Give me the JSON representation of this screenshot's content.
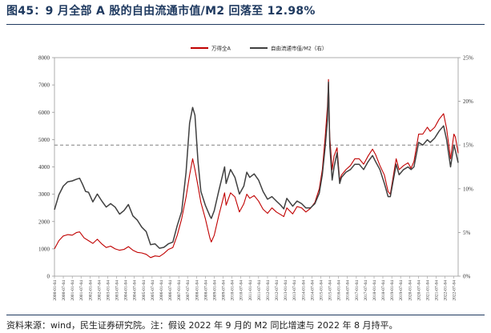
{
  "page": {
    "title": "图45：9 月全部 A 股的自由流通市值/M2 回落至 12.98%",
    "source": "资料来源：wind，民生证券研究院。注：假设 2022 年 9 月的 M2 同比增速与 2022 年 8 月持平。"
  },
  "colors": {
    "series_red": "#c00000",
    "series_gray": "#404040",
    "reference": "#808080",
    "title": "#1f3a60"
  },
  "chart_data": {
    "type": "line",
    "x_unit": "date",
    "x_range": [
      "2000-01-04",
      "2022-09-30"
    ],
    "x_tick_labels": [
      "2000-01-04",
      "2000-07-04",
      "2001-01-04",
      "2001-07-04",
      "2002-01-04",
      "2002-07-04",
      "2003-01-04",
      "2003-07-04",
      "2004-01-04",
      "2004-07-04",
      "2005-01-04",
      "2005-07-04",
      "2006-01-04",
      "2006-07-04",
      "2007-01-04",
      "2007-07-04",
      "2008-01-04",
      "2008-07-04",
      "2009-01-04",
      "2009-07-04",
      "2010-01-04",
      "2010-07-04",
      "2011-01-04",
      "2011-07-04",
      "2012-01-04",
      "2012-07-04",
      "2013-01-04",
      "2013-07-04",
      "2014-01-04",
      "2014-07-04",
      "2015-01-04",
      "2015-07-04",
      "2016-01-04",
      "2016-07-04",
      "2017-01-04",
      "2017-07-04",
      "2018-01-04",
      "2018-07-04",
      "2019-01-04",
      "2019-07-04",
      "2020-01-04",
      "2020-07-04",
      "2021-01-04",
      "2021-07-04",
      "2022-01-04",
      "2022-07-04"
    ],
    "y_left": {
      "range": [
        0,
        8000
      ],
      "ticks": [
        "0",
        "1000",
        "2000",
        "3000",
        "4000",
        "5000",
        "6000",
        "7000",
        "8000"
      ]
    },
    "y_right": {
      "range": [
        0,
        25
      ],
      "ticks": [
        "0%",
        "5%",
        "10%",
        "15%",
        "20%",
        "25%"
      ]
    },
    "reference_line": {
      "axis": "right",
      "value": 15
    },
    "legend": {
      "position": "top-center"
    },
    "series": [
      {
        "name": "万得全A",
        "axis": "left",
        "color": "#c00000",
        "points": [
          [
            "2000-01-04",
            1000
          ],
          [
            "2000-04-04",
            1300
          ],
          [
            "2000-07-04",
            1470
          ],
          [
            "2000-10-04",
            1520
          ],
          [
            "2001-01-04",
            1500
          ],
          [
            "2001-04-04",
            1600
          ],
          [
            "2001-06-04",
            1620
          ],
          [
            "2001-09-04",
            1400
          ],
          [
            "2001-12-04",
            1300
          ],
          [
            "2002-03-04",
            1200
          ],
          [
            "2002-06-04",
            1350
          ],
          [
            "2002-09-04",
            1180
          ],
          [
            "2002-12-04",
            1050
          ],
          [
            "2003-03-04",
            1100
          ],
          [
            "2003-06-04",
            1000
          ],
          [
            "2003-09-04",
            950
          ],
          [
            "2003-12-04",
            980
          ],
          [
            "2004-03-04",
            1080
          ],
          [
            "2004-06-04",
            950
          ],
          [
            "2004-09-04",
            870
          ],
          [
            "2004-12-04",
            850
          ],
          [
            "2005-03-04",
            800
          ],
          [
            "2005-06-04",
            680
          ],
          [
            "2005-09-04",
            740
          ],
          [
            "2005-12-04",
            720
          ],
          [
            "2006-03-04",
            830
          ],
          [
            "2006-06-04",
            980
          ],
          [
            "2006-09-04",
            1050
          ],
          [
            "2006-12-04",
            1500
          ],
          [
            "2007-03-04",
            2100
          ],
          [
            "2007-06-04",
            2900
          ],
          [
            "2007-08-15",
            3700
          ],
          [
            "2007-10-16",
            4300
          ],
          [
            "2007-12-04",
            3900
          ],
          [
            "2008-02-04",
            3300
          ],
          [
            "2008-04-04",
            2700
          ],
          [
            "2008-07-04",
            2100
          ],
          [
            "2008-10-04",
            1400
          ],
          [
            "2008-11-04",
            1250
          ],
          [
            "2009-01-04",
            1500
          ],
          [
            "2009-04-04",
            2200
          ],
          [
            "2009-08-04",
            3050
          ],
          [
            "2009-09-04",
            2600
          ],
          [
            "2009-12-04",
            3050
          ],
          [
            "2010-03-04",
            2900
          ],
          [
            "2010-06-04",
            2350
          ],
          [
            "2010-09-04",
            2650
          ],
          [
            "2010-11-04",
            3000
          ],
          [
            "2011-01-04",
            2850
          ],
          [
            "2011-04-04",
            2950
          ],
          [
            "2011-07-04",
            2750
          ],
          [
            "2011-10-04",
            2450
          ],
          [
            "2012-01-04",
            2300
          ],
          [
            "2012-04-04",
            2500
          ],
          [
            "2012-07-04",
            2350
          ],
          [
            "2012-10-04",
            2250
          ],
          [
            "2012-12-04",
            2180
          ],
          [
            "2013-02-04",
            2500
          ],
          [
            "2013-06-04",
            2280
          ],
          [
            "2013-09-04",
            2550
          ],
          [
            "2013-12-04",
            2500
          ],
          [
            "2014-03-04",
            2350
          ],
          [
            "2014-06-04",
            2480
          ],
          [
            "2014-09-04",
            2700
          ],
          [
            "2014-12-04",
            3200
          ],
          [
            "2015-02-04",
            3900
          ],
          [
            "2015-04-04",
            5100
          ],
          [
            "2015-05-20",
            6200
          ],
          [
            "2015-06-12",
            7200
          ],
          [
            "2015-07-08",
            5100
          ],
          [
            "2015-08-26",
            3900
          ],
          [
            "2015-10-04",
            4400
          ],
          [
            "2015-12-04",
            4700
          ],
          [
            "2016-01-28",
            3500
          ],
          [
            "2016-03-04",
            3700
          ],
          [
            "2016-06-04",
            3900
          ],
          [
            "2016-09-04",
            4050
          ],
          [
            "2016-12-04",
            4300
          ],
          [
            "2017-03-04",
            4300
          ],
          [
            "2017-06-04",
            4100
          ],
          [
            "2017-09-04",
            4400
          ],
          [
            "2017-12-04",
            4650
          ],
          [
            "2018-02-04",
            4450
          ],
          [
            "2018-05-04",
            4050
          ],
          [
            "2018-08-04",
            3700
          ],
          [
            "2018-10-19",
            3100
          ],
          [
            "2018-12-04",
            3000
          ],
          [
            "2019-04-04",
            4300
          ],
          [
            "2019-06-04",
            3900
          ],
          [
            "2019-09-04",
            4050
          ],
          [
            "2019-12-04",
            4150
          ],
          [
            "2020-02-04",
            3950
          ],
          [
            "2020-04-04",
            4200
          ],
          [
            "2020-07-10",
            5200
          ],
          [
            "2020-10-04",
            5200
          ],
          [
            "2021-01-04",
            5450
          ],
          [
            "2021-03-04",
            5300
          ],
          [
            "2021-06-04",
            5450
          ],
          [
            "2021-09-04",
            5750
          ],
          [
            "2021-12-04",
            5950
          ],
          [
            "2022-02-04",
            5400
          ],
          [
            "2022-04-27",
            4300
          ],
          [
            "2022-07-04",
            5200
          ],
          [
            "2022-08-04",
            5100
          ],
          [
            "2022-09-30",
            4500
          ]
        ]
      },
      {
        "name": "自由流通市值/M2（右）",
        "axis": "right",
        "color": "#404040",
        "points": [
          [
            "2000-01-04",
            7.6
          ],
          [
            "2000-04-04",
            9.3
          ],
          [
            "2000-07-04",
            10.3
          ],
          [
            "2000-10-04",
            10.8
          ],
          [
            "2001-01-04",
            10.9
          ],
          [
            "2001-04-04",
            11.1
          ],
          [
            "2001-06-04",
            11.2
          ],
          [
            "2001-08-04",
            10.5
          ],
          [
            "2001-10-04",
            9.7
          ],
          [
            "2001-12-04",
            9.6
          ],
          [
            "2002-03-04",
            8.5
          ],
          [
            "2002-06-04",
            9.4
          ],
          [
            "2002-09-04",
            8.6
          ],
          [
            "2002-12-04",
            7.9
          ],
          [
            "2003-03-04",
            8.3
          ],
          [
            "2003-06-04",
            7.9
          ],
          [
            "2003-09-04",
            7.1
          ],
          [
            "2003-12-04",
            7.5
          ],
          [
            "2004-03-04",
            8.2
          ],
          [
            "2004-06-04",
            6.9
          ],
          [
            "2004-09-04",
            6.4
          ],
          [
            "2004-12-04",
            5.6
          ],
          [
            "2005-03-04",
            5.1
          ],
          [
            "2005-06-04",
            3.6
          ],
          [
            "2005-09-04",
            3.7
          ],
          [
            "2005-12-04",
            3.2
          ],
          [
            "2006-03-04",
            3.3
          ],
          [
            "2006-06-04",
            3.7
          ],
          [
            "2006-09-04",
            3.9
          ],
          [
            "2006-12-04",
            5.8
          ],
          [
            "2007-03-04",
            7.4
          ],
          [
            "2007-06-04",
            11.9
          ],
          [
            "2007-08-15",
            17.5
          ],
          [
            "2007-10-16",
            19.3
          ],
          [
            "2007-12-04",
            18.4
          ],
          [
            "2008-02-04",
            13.1
          ],
          [
            "2008-04-04",
            9.7
          ],
          [
            "2008-07-04",
            8.1
          ],
          [
            "2008-10-04",
            6.9
          ],
          [
            "2008-11-04",
            6.6
          ],
          [
            "2009-01-04",
            7.5
          ],
          [
            "2009-04-04",
            9.7
          ],
          [
            "2009-08-04",
            12.5
          ],
          [
            "2009-09-04",
            10.6
          ],
          [
            "2009-12-04",
            12.2
          ],
          [
            "2010-03-04",
            11.3
          ],
          [
            "2010-06-04",
            9.4
          ],
          [
            "2010-09-04",
            10.3
          ],
          [
            "2010-11-04",
            11.9
          ],
          [
            "2011-01-04",
            11.3
          ],
          [
            "2011-04-04",
            11.7
          ],
          [
            "2011-07-04",
            11.0
          ],
          [
            "2011-10-04",
            9.7
          ],
          [
            "2012-01-04",
            8.8
          ],
          [
            "2012-04-04",
            9.1
          ],
          [
            "2012-07-04",
            8.6
          ],
          [
            "2012-10-04",
            8.1
          ],
          [
            "2012-12-04",
            7.7
          ],
          [
            "2013-02-04",
            8.9
          ],
          [
            "2013-06-04",
            8.0
          ],
          [
            "2013-09-04",
            8.6
          ],
          [
            "2013-12-04",
            8.3
          ],
          [
            "2014-03-04",
            7.8
          ],
          [
            "2014-06-04",
            7.8
          ],
          [
            "2014-09-04",
            8.3
          ],
          [
            "2014-12-04",
            9.5
          ],
          [
            "2015-02-04",
            11.6
          ],
          [
            "2015-04-04",
            14.8
          ],
          [
            "2015-05-20",
            17.9
          ],
          [
            "2015-06-12",
            22.2
          ],
          [
            "2015-07-08",
            15.0
          ],
          [
            "2015-08-26",
            11.0
          ],
          [
            "2015-10-04",
            12.5
          ],
          [
            "2015-12-04",
            14.1
          ],
          [
            "2016-01-28",
            10.6
          ],
          [
            "2016-03-04",
            11.3
          ],
          [
            "2016-06-04",
            11.9
          ],
          [
            "2016-09-04",
            12.2
          ],
          [
            "2016-12-04",
            12.8
          ],
          [
            "2017-03-04",
            12.8
          ],
          [
            "2017-06-04",
            12.2
          ],
          [
            "2017-09-04",
            13.1
          ],
          [
            "2017-12-04",
            13.8
          ],
          [
            "2018-02-04",
            13.1
          ],
          [
            "2018-05-04",
            12.2
          ],
          [
            "2018-08-04",
            10.6
          ],
          [
            "2018-10-19",
            9.1
          ],
          [
            "2018-12-04",
            9.1
          ],
          [
            "2019-04-04",
            12.8
          ],
          [
            "2019-06-04",
            11.6
          ],
          [
            "2019-09-04",
            12.2
          ],
          [
            "2019-12-04",
            12.5
          ],
          [
            "2020-02-04",
            12.2
          ],
          [
            "2020-04-04",
            12.5
          ],
          [
            "2020-07-10",
            15.3
          ],
          [
            "2020-10-04",
            15.0
          ],
          [
            "2021-01-04",
            15.6
          ],
          [
            "2021-03-04",
            15.3
          ],
          [
            "2021-06-04",
            15.8
          ],
          [
            "2021-09-04",
            16.6
          ],
          [
            "2021-12-04",
            17.2
          ],
          [
            "2022-02-04",
            15.6
          ],
          [
            "2022-04-27",
            12.5
          ],
          [
            "2022-07-04",
            15.0
          ],
          [
            "2022-08-04",
            14.4
          ],
          [
            "2022-09-30",
            12.98
          ]
        ]
      }
    ]
  }
}
